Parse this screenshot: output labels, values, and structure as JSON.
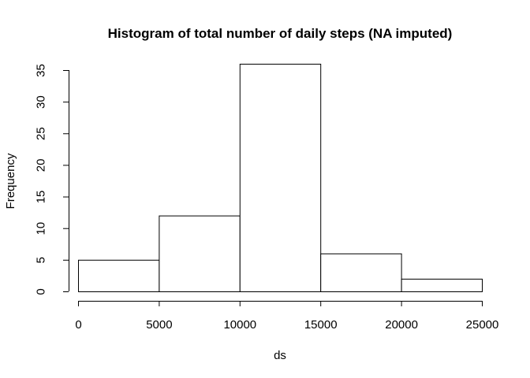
{
  "chart_data": {
    "type": "bar",
    "subtype": "histogram",
    "title": "Histogram of total number of daily steps (NA imputed)",
    "xlabel": "ds",
    "ylabel": "Frequency",
    "bins": [
      {
        "from": 0,
        "to": 5000,
        "count": 5
      },
      {
        "from": 5000,
        "to": 10000,
        "count": 12
      },
      {
        "from": 10000,
        "to": 15000,
        "count": 36
      },
      {
        "from": 15000,
        "to": 20000,
        "count": 6
      },
      {
        "from": 20000,
        "to": 25000,
        "count": 2
      }
    ],
    "xlim": [
      0,
      25000
    ],
    "ylim": [
      0,
      35
    ],
    "x_ticks": [
      0,
      5000,
      10000,
      15000,
      20000,
      25000
    ],
    "y_ticks": [
      0,
      5,
      10,
      15,
      20,
      25,
      30,
      35
    ],
    "bar_fill": "#ffffff",
    "bar_stroke": "#000000",
    "grid": false,
    "legend": "none"
  }
}
